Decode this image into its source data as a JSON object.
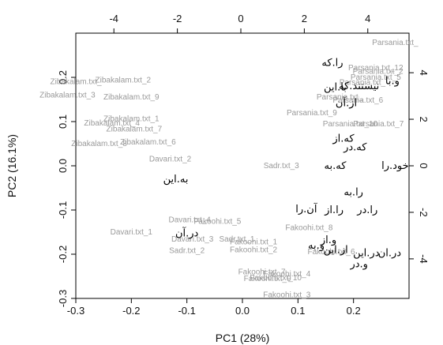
{
  "chart_data": {
    "type": "scatter",
    "xlabel": "PC1 (28%)",
    "ylabel": "PC2 (16.1%)",
    "xlim": [
      -0.3,
      0.3
    ],
    "ylim": [
      -0.3,
      0.3
    ],
    "x_ticks": [
      -0.3,
      -0.2,
      -0.1,
      0.0,
      0.1,
      0.2
    ],
    "y_ticks": [
      -0.3,
      -0.2,
      -0.1,
      0.0,
      0.1,
      0.2
    ],
    "top_axis": {
      "range": [
        -5.2,
        5.3
      ],
      "ticks": [
        -4,
        -2,
        0,
        2,
        4
      ]
    },
    "right_axis": {
      "range": [
        -5.7,
        5.7
      ],
      "ticks": [
        -4,
        -2,
        0,
        2,
        4
      ]
    },
    "colors": {
      "observations": "#9a9a9a",
      "variables": "#000000"
    },
    "observations": [
      {
        "label": "Parsania.txt_",
        "x": 0.275,
        "y": 0.279
      },
      {
        "label": "Parsania.txt_12",
        "x": 0.24,
        "y": 0.221
      },
      {
        "label": "Parsania.txt_2",
        "x": 0.244,
        "y": 0.213
      },
      {
        "label": "Parsania.txt_5",
        "x": 0.24,
        "y": 0.2
      },
      {
        "label": "Parsania.txt_",
        "x": 0.216,
        "y": 0.188
      },
      {
        "label": "Parsania.txt_6",
        "x": 0.208,
        "y": 0.148
      },
      {
        "label": "Parsania.txt_",
        "x": 0.175,
        "y": 0.155
      },
      {
        "label": "Parsania.txt_9",
        "x": 0.125,
        "y": 0.12
      },
      {
        "label": "Parsania.txt_7",
        "x": 0.245,
        "y": 0.095
      },
      {
        "label": "Parsania.txt_10",
        "x": 0.194,
        "y": 0.095
      },
      {
        "label": "Zibakalam.txt_2",
        "x": -0.215,
        "y": 0.194
      },
      {
        "label": "Zibakalam.txt_",
        "x": -0.3,
        "y": 0.19
      },
      {
        "label": "Zibakalam.txt_3",
        "x": -0.315,
        "y": 0.16
      },
      {
        "label": "Zibakalam.txt_9",
        "x": -0.2,
        "y": 0.155
      },
      {
        "label": "Zibakalam.txt_1",
        "x": -0.2,
        "y": 0.106
      },
      {
        "label": "Zibakalam.txt_4",
        "x": -0.235,
        "y": 0.096
      },
      {
        "label": "Zibakalam.txt_7",
        "x": -0.195,
        "y": 0.083
      },
      {
        "label": "Zibakalam.txt_6",
        "x": -0.17,
        "y": 0.054
      },
      {
        "label": "Zibakalam.txt_8",
        "x": -0.258,
        "y": 0.05
      },
      {
        "label": "Davari.txt_2",
        "x": -0.13,
        "y": 0.015
      },
      {
        "label": "Sadr.txt_3",
        "x": 0.07,
        "y": 0.0
      },
      {
        "label": "Davari.txt_4",
        "x": -0.095,
        "y": -0.122
      },
      {
        "label": "Fakoohi.txt_5",
        "x": -0.045,
        "y": -0.126
      },
      {
        "label": "Davari.txt_1",
        "x": -0.2,
        "y": -0.15
      },
      {
        "label": "Fakoohi.txt_8",
        "x": 0.12,
        "y": -0.14
      },
      {
        "label": "Davari.txt_3",
        "x": -0.09,
        "y": -0.166
      },
      {
        "label": "Sadr.txt_1",
        "x": -0.01,
        "y": -0.166
      },
      {
        "label": "Fakoohi.txt_1",
        "x": 0.02,
        "y": -0.172
      },
      {
        "label": "Sadr.txt_2",
        "x": -0.1,
        "y": -0.192
      },
      {
        "label": "Fakoohi.txt_2",
        "x": 0.02,
        "y": -0.19
      },
      {
        "label": "Fakoohi.txt_6",
        "x": 0.16,
        "y": -0.195
      },
      {
        "label": "Fakoohi.txt_7",
        "x": 0.035,
        "y": -0.24
      },
      {
        "label": "Fakoohi.txt_4",
        "x": 0.08,
        "y": -0.245
      },
      {
        "label": "Fakoohi.txt_9",
        "x": 0.045,
        "y": -0.255
      },
      {
        "label": "Fakoohi.txt_10",
        "x": 0.06,
        "y": -0.254
      },
      {
        "label": "Fakoohi.txt_3",
        "x": 0.08,
        "y": -0.292
      }
    ],
    "variables": [
      {
        "label": "را.که",
        "x": 0.162,
        "y": 0.233
      },
      {
        "label": "و.با",
        "x": 0.27,
        "y": 0.192
      },
      {
        "label": "نیستند.که",
        "x": 0.21,
        "y": 0.18
      },
      {
        "label": "با.این",
        "x": 0.167,
        "y": 0.178
      },
      {
        "label": "از.آن",
        "x": 0.187,
        "y": 0.142
      },
      {
        "label": "که.از",
        "x": 0.182,
        "y": 0.062
      },
      {
        "label": "که.در",
        "x": 0.203,
        "y": 0.042
      },
      {
        "label": "که.به",
        "x": 0.167,
        "y": 0.0
      },
      {
        "label": "خود.را",
        "x": 0.275,
        "y": 0.0
      },
      {
        "label": "به.این",
        "x": -0.12,
        "y": -0.03
      },
      {
        "label": "را.به",
        "x": 0.2,
        "y": -0.06
      },
      {
        "label": "آن.را",
        "x": 0.115,
        "y": -0.098
      },
      {
        "label": "را.از",
        "x": 0.165,
        "y": -0.1
      },
      {
        "label": "را.در",
        "x": 0.225,
        "y": -0.1
      },
      {
        "label": "در.آن",
        "x": -0.1,
        "y": -0.153
      },
      {
        "label": "و.از",
        "x": 0.155,
        "y": -0.168
      },
      {
        "label": "و.به",
        "x": 0.133,
        "y": -0.18
      },
      {
        "label": "از.این",
        "x": 0.168,
        "y": -0.19
      },
      {
        "label": "در.این",
        "x": 0.223,
        "y": -0.197
      },
      {
        "label": "در.ان",
        "x": 0.265,
        "y": -0.197
      },
      {
        "label": "و.در",
        "x": 0.21,
        "y": -0.222
      }
    ]
  }
}
